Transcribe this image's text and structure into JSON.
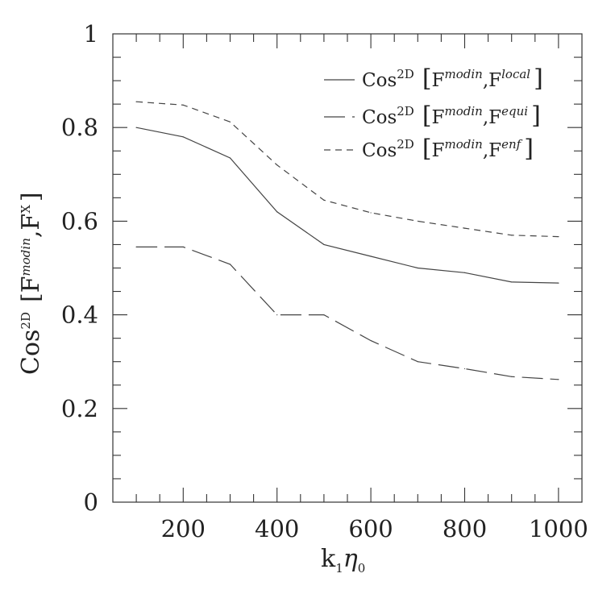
{
  "chart_data": {
    "type": "line",
    "title": "",
    "xlabel": "k₁η₀",
    "ylabel": "Cos2D [Fmodin, FX]",
    "xlim": [
      50,
      1050
    ],
    "ylim": [
      0,
      1
    ],
    "x": [
      100,
      200,
      300,
      400,
      500,
      600,
      700,
      800,
      900,
      1000
    ],
    "xticks": [
      200,
      400,
      600,
      800,
      1000
    ],
    "xtick_labels": [
      "200",
      "400",
      "600",
      "800",
      "1000"
    ],
    "yticks": [
      0,
      0.2,
      0.4,
      0.6,
      0.8,
      1
    ],
    "ytick_labels": [
      "0",
      "0.2",
      "0.4",
      "0.6",
      "0.8",
      "1"
    ],
    "legend_position": "top-right",
    "series": [
      {
        "name": "Cos2D [Fmodin, Flocal]",
        "label_parts": {
          "base": "Cos",
          "sup": "2D",
          "lbr": "[",
          "f1": "F",
          "s1": "modin",
          "comma": ",",
          "f2": "F",
          "s2": "local",
          "rbr": "]"
        },
        "style": "solid",
        "values": [
          0.8,
          0.78,
          0.735,
          0.62,
          0.55,
          0.525,
          0.5,
          0.49,
          0.47,
          0.468
        ]
      },
      {
        "name": "Cos2D [Fmodin, Fequi]",
        "label_parts": {
          "base": "Cos",
          "sup": "2D",
          "lbr": "[",
          "f1": "F",
          "s1": "modin",
          "comma": ",",
          "f2": "F",
          "s2": "equi",
          "rbr": "]"
        },
        "style": "long-dash",
        "values": [
          0.545,
          0.545,
          0.508,
          0.4,
          0.4,
          0.345,
          0.3,
          0.285,
          0.268,
          0.262
        ]
      },
      {
        "name": "Cos2D [Fmodin, Fenf]",
        "label_parts": {
          "base": "Cos",
          "sup": "2D",
          "lbr": "[",
          "f1": "F",
          "s1": "modin",
          "comma": ",",
          "f2": "F",
          "s2": "enf",
          "rbr": "]"
        },
        "style": "short-dash",
        "values": [
          0.855,
          0.848,
          0.812,
          0.72,
          0.645,
          0.618,
          0.6,
          0.585,
          0.57,
          0.567
        ]
      }
    ],
    "axis_label_parts": {
      "x": {
        "k": "k",
        "ks": "1",
        "eta": "η",
        "es": "0"
      },
      "y": {
        "base": "Cos",
        "sup": "2D",
        "lbr": "[",
        "f1": "F",
        "s1": "modin",
        "comma": ",",
        "f2": "F",
        "s2": "X",
        "rbr": "]"
      }
    }
  }
}
